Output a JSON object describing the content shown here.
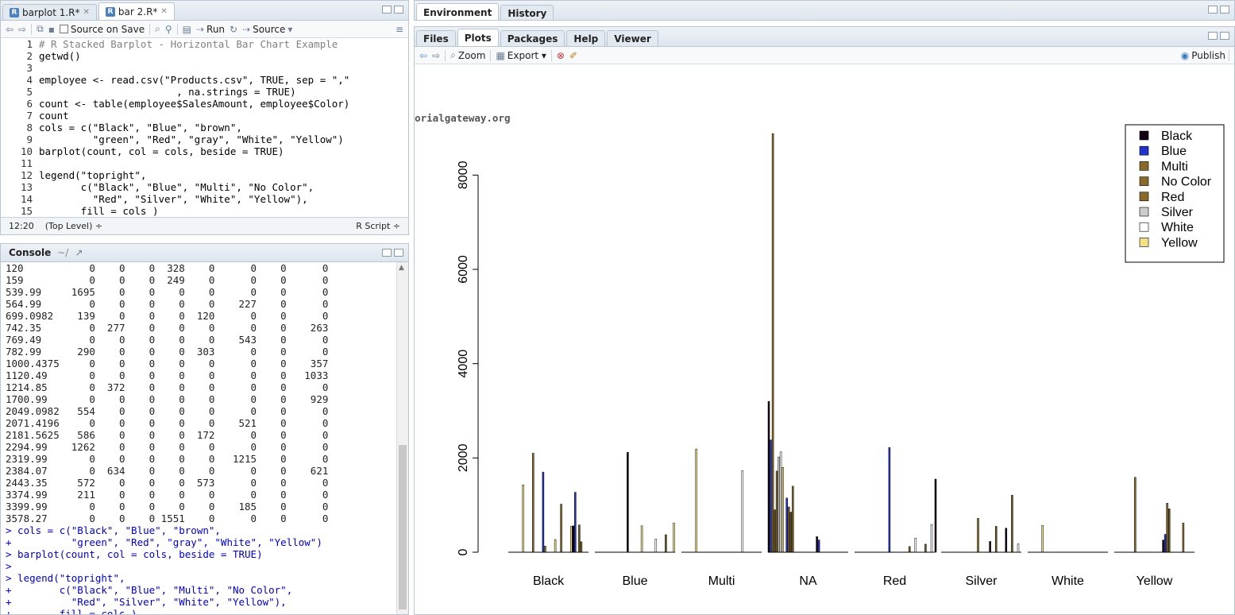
{
  "editor": {
    "tabs": [
      {
        "label": "barplot 1.R*",
        "active": false
      },
      {
        "label": "bar 2.R*",
        "active": true
      }
    ],
    "toolbar": {
      "source_on_save": "Source on Save",
      "run": "Run",
      "source": "Source"
    },
    "lines": [
      {
        "n": "1",
        "text": "# R Stacked Barplot - Horizontal Bar Chart Example"
      },
      {
        "n": "2",
        "text": "getwd()"
      },
      {
        "n": "3",
        "text": ""
      },
      {
        "n": "4",
        "text": "employee <- read.csv(\"Products.csv\", TRUE, sep = \",\""
      },
      {
        "n": "5",
        "text": "                       , na.strings = TRUE)"
      },
      {
        "n": "6",
        "text": "count <- table(employee$SalesAmount, employee$Color)"
      },
      {
        "n": "7",
        "text": "count"
      },
      {
        "n": "8",
        "text": "cols = c(\"Black\", \"Blue\", \"brown\","
      },
      {
        "n": "9",
        "text": "         \"green\", \"Red\", \"gray\", \"White\", \"Yellow\")"
      },
      {
        "n": "10",
        "text": "barplot(count, col = cols, beside = TRUE)"
      },
      {
        "n": "11",
        "text": ""
      },
      {
        "n": "12",
        "text": "legend(\"topright\","
      },
      {
        "n": "13",
        "text": "       c(\"Black\", \"Blue\", \"Multi\", \"No Color\","
      },
      {
        "n": "14",
        "text": "         \"Red\", \"Silver\", \"White\", \"Yellow\"),"
      },
      {
        "n": "15",
        "text": "       fill = cols )"
      }
    ],
    "status": {
      "position": "12:20",
      "scope": "(Top Level) ÷",
      "type": "R Script ÷"
    }
  },
  "console": {
    "title": "Console",
    "path": "~/",
    "lines": [
      {
        "text": "120           0    0    0  328    0      0    0      0",
        "cmd": false
      },
      {
        "text": "159           0    0    0  249    0      0    0      0",
        "cmd": false
      },
      {
        "text": "539.99     1695    0    0    0    0      0    0      0",
        "cmd": false
      },
      {
        "text": "564.99        0    0    0    0    0    227    0      0",
        "cmd": false
      },
      {
        "text": "699.0982    139    0    0    0  120      0    0      0",
        "cmd": false
      },
      {
        "text": "742.35        0  277    0    0    0      0    0    263",
        "cmd": false
      },
      {
        "text": "769.49        0    0    0    0    0    543    0      0",
        "cmd": false
      },
      {
        "text": "782.99      290    0    0    0  303      0    0      0",
        "cmd": false
      },
      {
        "text": "1000.4375     0    0    0    0    0      0    0    357",
        "cmd": false
      },
      {
        "text": "1120.49       0    0    0    0    0      0    0   1033",
        "cmd": false
      },
      {
        "text": "1214.85       0  372    0    0    0      0    0      0",
        "cmd": false
      },
      {
        "text": "1700.99       0    0    0    0    0      0    0    929",
        "cmd": false
      },
      {
        "text": "2049.0982   554    0    0    0    0      0    0      0",
        "cmd": false
      },
      {
        "text": "2071.4196     0    0    0    0    0    521    0      0",
        "cmd": false
      },
      {
        "text": "2181.5625   586    0    0    0  172      0    0      0",
        "cmd": false
      },
      {
        "text": "2294.99    1262    0    0    0    0      0    0      0",
        "cmd": false
      },
      {
        "text": "2319.99       0    0    0    0    0   1215    0      0",
        "cmd": false
      },
      {
        "text": "2384.07       0  634    0    0    0      0    0    621",
        "cmd": false
      },
      {
        "text": "2443.35     572    0    0    0  573      0    0      0",
        "cmd": false
      },
      {
        "text": "3374.99     211    0    0    0    0      0    0      0",
        "cmd": false
      },
      {
        "text": "3399.99       0    0    0    0    0    185    0      0",
        "cmd": false
      },
      {
        "text": "3578.27       0    0    0 1551    0      0    0      0",
        "cmd": false
      },
      {
        "text": "> cols = c(\"Black\", \"Blue\", \"brown\",",
        "cmd": true
      },
      {
        "text": "+          \"green\", \"Red\", \"gray\", \"White\", \"Yellow\")",
        "cmd": true
      },
      {
        "text": "> barplot(count, col = cols, beside = TRUE)",
        "cmd": true
      },
      {
        "text": ">",
        "cmd": true
      },
      {
        "text": "> legend(\"topright\",",
        "cmd": true
      },
      {
        "text": "+        c(\"Black\", \"Blue\", \"Multi\", \"No Color\",",
        "cmd": true
      },
      {
        "text": "+          \"Red\", \"Silver\", \"White\", \"Yellow\"),",
        "cmd": true
      },
      {
        "text": "+        fill = cols )",
        "cmd": true
      }
    ]
  },
  "env_tabs": [
    {
      "label": "Environment",
      "active": true
    },
    {
      "label": "History",
      "active": false
    }
  ],
  "plot_tabs": [
    {
      "label": "Files",
      "active": false
    },
    {
      "label": "Plots",
      "active": true
    },
    {
      "label": "Packages",
      "active": false
    },
    {
      "label": "Help",
      "active": false
    },
    {
      "label": "Viewer",
      "active": false
    }
  ],
  "plot_toolbar": {
    "zoom": "Zoom",
    "export": "Export ▾",
    "publish": "Publish"
  },
  "watermark": "©tutorialgateway.org",
  "chart_data": {
    "type": "bar",
    "categories": [
      "Black",
      "Blue",
      "Multi",
      "NA",
      "Red",
      "Silver",
      "White",
      "Yellow"
    ],
    "ylim": [
      0,
      9000
    ],
    "yticks": [
      0,
      2000,
      4000,
      6000,
      8000
    ],
    "legend_position": "top-right",
    "grid": false,
    "legend": [
      {
        "label": "Black",
        "color": "#120010"
      },
      {
        "label": "Blue",
        "color": "#2233cc"
      },
      {
        "label": "Multi",
        "color": "#8a6a2a"
      },
      {
        "label": "No Color",
        "color": "#8a6a2a"
      },
      {
        "label": "Red",
        "color": "#8a6a2a"
      },
      {
        "label": "Silver",
        "color": "#cccccc"
      },
      {
        "label": "White",
        "color": "#ffffff"
      },
      {
        "label": "Yellow",
        "color": "#f5e08a"
      }
    ],
    "bar_colors": [
      "#120010",
      "#2233cc",
      "#8a6a2a",
      "#6b5a20",
      "#8a6a2a",
      "#cccccc",
      "#ffffff",
      "#f5e08a"
    ],
    "groups": [
      [
        0,
        0,
        0,
        0,
        0,
        0,
        0,
        1430,
        0,
        0,
        0,
        0,
        2100,
        0,
        0,
        0,
        0,
        1700,
        130,
        0,
        0,
        0,
        0,
        270,
        0,
        0,
        1020,
        0,
        0,
        0,
        0,
        550,
        560,
        1270,
        0,
        580,
        220
      ],
      [
        0,
        0,
        0,
        0,
        0,
        0,
        0,
        0,
        0,
        0,
        0,
        0,
        0,
        0,
        0,
        0,
        2120,
        0,
        0,
        0,
        0,
        0,
        0,
        560,
        0,
        0,
        0,
        0,
        0,
        0,
        280,
        0,
        0,
        0,
        0,
        370,
        0,
        0,
        0,
        620
      ],
      [
        0,
        0,
        0,
        0,
        0,
        0,
        0,
        2190,
        0,
        0,
        0,
        0,
        0,
        0,
        0,
        0,
        0,
        0,
        0,
        0,
        0,
        0,
        0,
        0,
        0,
        0,
        0,
        0,
        0,
        0,
        1730,
        0
      ],
      [
        3200,
        2380,
        8880,
        900,
        1720,
        2020,
        2130,
        1800,
        0,
        1150,
        960,
        850,
        1400,
        0,
        0,
        0,
        0,
        0,
        0,
        0,
        0,
        0,
        0,
        0,
        330,
        260
      ],
      [
        0,
        0,
        0,
        0,
        0,
        0,
        0,
        0,
        0,
        0,
        0,
        0,
        0,
        0,
        0,
        0,
        0,
        2220,
        0,
        0,
        0,
        0,
        0,
        0,
        0,
        0,
        0,
        120,
        0,
        0,
        300,
        0,
        0,
        0,
        0,
        170,
        0,
        0,
        590,
        0,
        1550
      ],
      [
        0,
        0,
        0,
        0,
        0,
        0,
        0,
        0,
        0,
        0,
        0,
        0,
        0,
        0,
        0,
        0,
        0,
        0,
        720,
        0,
        0,
        0,
        0,
        0,
        230,
        0,
        0,
        550,
        0,
        0,
        0,
        0,
        510,
        0,
        0,
        1210,
        0,
        0,
        180
      ],
      [
        0,
        0,
        0,
        0,
        0,
        0,
        0,
        570
      ],
      [
        0,
        0,
        0,
        0,
        0,
        0,
        0,
        0,
        0,
        0,
        1590,
        0,
        0,
        0,
        0,
        0,
        0,
        0,
        0,
        0,
        0,
        0,
        0,
        0,
        260,
        380,
        1040,
        920,
        0,
        0,
        0,
        0,
        0,
        0,
        620
      ]
    ]
  }
}
